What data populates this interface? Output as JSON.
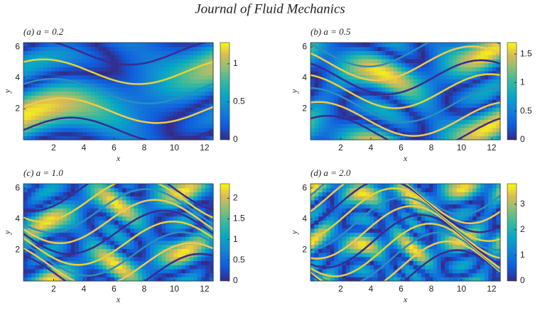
{
  "header": {
    "title": "Journal of Fluid Mechanics"
  },
  "chart_data": [
    {
      "type": "heatmap",
      "title": "(a) a = 0.2",
      "xlabel": "x",
      "ylabel": "y",
      "xlim": [
        0,
        12.57
      ],
      "xticks": [
        2,
        4,
        6,
        8,
        10,
        12
      ],
      "ylim": [
        0,
        6.28
      ],
      "yticks": [
        2,
        4,
        6
      ],
      "clim": [
        0,
        1.28
      ],
      "cticks": [
        0,
        0.5,
        1
      ]
    },
    {
      "type": "heatmap",
      "title": "(b) a = 0.5",
      "xlabel": "x",
      "ylabel": "y",
      "xlim": [
        0,
        12.57
      ],
      "xticks": [
        2,
        4,
        6,
        8,
        10,
        12
      ],
      "ylim": [
        0,
        6.28
      ],
      "yticks": [
        2,
        4,
        6
      ],
      "clim": [
        0,
        1.7
      ],
      "cticks": [
        0,
        0.5,
        1,
        1.5
      ]
    },
    {
      "type": "heatmap",
      "title": "(c) a = 1.0",
      "xlabel": "x",
      "ylabel": "y",
      "xlim": [
        0,
        12.57
      ],
      "xticks": [
        2,
        4,
        6,
        8,
        10,
        12
      ],
      "ylim": [
        0,
        6.28
      ],
      "yticks": [
        2,
        4,
        6
      ],
      "clim": [
        0,
        2.35
      ],
      "cticks": [
        0,
        0.5,
        1,
        1.5,
        2
      ]
    },
    {
      "type": "heatmap",
      "title": "(d) a = 2.0",
      "xlabel": "x",
      "ylabel": "y",
      "xlim": [
        0,
        12.57
      ],
      "xticks": [
        2,
        4,
        6,
        8,
        10,
        12
      ],
      "ylim": [
        0,
        6.28
      ],
      "yticks": [
        2,
        4,
        6
      ],
      "clim": [
        0,
        3.8
      ],
      "cticks": [
        0,
        1,
        2,
        3
      ]
    }
  ]
}
